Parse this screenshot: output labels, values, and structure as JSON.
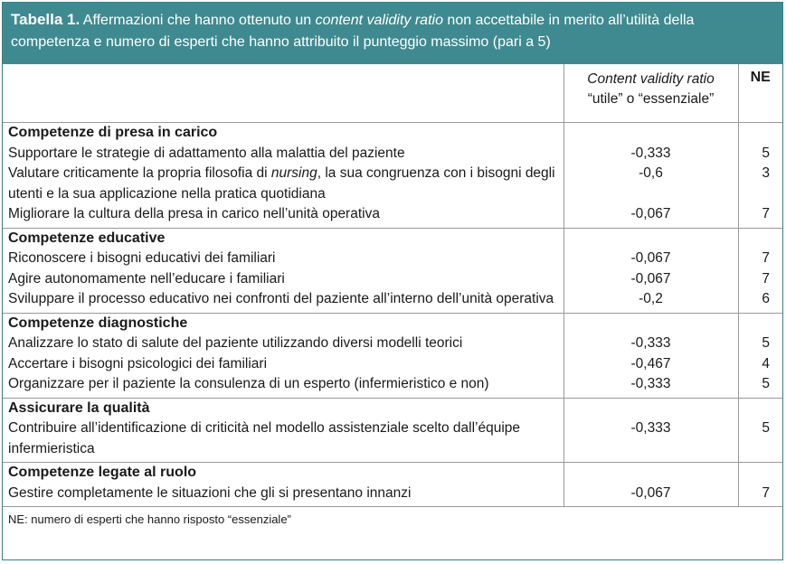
{
  "caption": {
    "label": "Tabella 1.",
    "text_before": " Affermazioni che hanno ottenuto un ",
    "text_italic": "content validity ratio",
    "text_after": " non accettabile in merito all’utilità della competenza e numero di esperti che hanno attribuito il punteggio massimo (pari a 5)"
  },
  "header": {
    "col2_line1": "Content validity ratio",
    "col2_line2": "“utile” o “essenziale”",
    "col3": "NE"
  },
  "sections": [
    {
      "title": "Competenze di presa in carico",
      "rows": [
        {
          "text": "Supportare le strategie di adattamento alla malattia del paziente",
          "cvr": "-0,333",
          "ne": "5"
        },
        {
          "text_before": "Valutare criticamente la propria filosofia di ",
          "text_italic": "nursing",
          "text_after": ", la sua congruenza con i bisogni degli utenti e la sua applicazione nella pratica quotidiana",
          "cvr": "-0,6",
          "ne": "3"
        },
        {
          "text": "Migliorare la cultura della presa in carico nell’unità operativa",
          "cvr": "-0,067",
          "ne": "7"
        }
      ]
    },
    {
      "title": "Competenze educative",
      "rows": [
        {
          "text": "Riconoscere i bisogni educativi dei familiari",
          "cvr": "-0,067",
          "ne": "7"
        },
        {
          "text": "Agire autonomamente nell’educare i familiari",
          "cvr": "-0,067",
          "ne": "7"
        },
        {
          "text": "Sviluppare il processo educativo nei confronti del paziente all’interno dell’unità operativa",
          "cvr": "-0,2",
          "ne": "6"
        }
      ]
    },
    {
      "title": "Competenze diagnostiche",
      "rows": [
        {
          "text": "Analizzare lo stato di salute del paziente utilizzando diversi modelli teorici",
          "cvr": "-0,333",
          "ne": "5"
        },
        {
          "text": "Accertare i bisogni psicologici dei familiari",
          "cvr": "-0,467",
          "ne": "4"
        },
        {
          "text": "Organizzare per il paziente la consulenza di un esperto (infermieristico e non)",
          "cvr": "-0,333",
          "ne": "5"
        }
      ]
    },
    {
      "title": "Assicurare la qualità",
      "rows": [
        {
          "text": "Contribuire all’identificazione di criticità nel modello assistenziale scelto dall’équipe infermieristica",
          "cvr": "-0,333",
          "ne": "5"
        }
      ]
    },
    {
      "title": "Competenze legate al ruolo",
      "rows": [
        {
          "text": "Gestire completamente le situazioni che gli si presentano innanzi",
          "cvr": "-0,067",
          "ne": "7"
        }
      ]
    }
  ],
  "footnote": "NE: numero di esperti che hanno risposto “essenziale”"
}
